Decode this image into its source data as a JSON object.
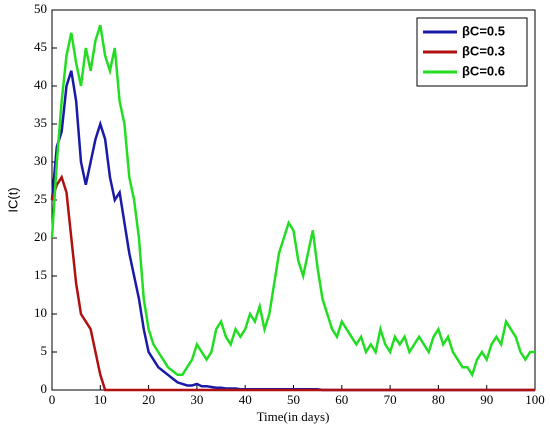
{
  "chart_data": {
    "type": "line",
    "xlabel": "Time(in days)",
    "ylabel": "IC(t)",
    "xlim": [
      0,
      100
    ],
    "xticks": [
      0,
      10,
      20,
      30,
      40,
      50,
      60,
      70,
      80,
      90,
      100
    ],
    "ylim": [
      0,
      50
    ],
    "yticks": [
      0,
      5,
      10,
      15,
      20,
      25,
      30,
      35,
      40,
      45,
      50
    ],
    "legend": "upper right",
    "x": [
      0,
      1,
      2,
      3,
      4,
      5,
      6,
      7,
      8,
      9,
      10,
      11,
      12,
      13,
      14,
      15,
      16,
      17,
      18,
      19,
      20,
      21,
      22,
      23,
      24,
      25,
      26,
      27,
      28,
      29,
      30,
      31,
      32,
      33,
      34,
      35,
      36,
      37,
      38,
      39,
      40,
      41,
      42,
      43,
      44,
      45,
      46,
      47,
      48,
      49,
      50,
      51,
      52,
      53,
      54,
      55,
      56,
      57,
      58,
      59,
      60,
      61,
      62,
      63,
      64,
      65,
      66,
      67,
      68,
      69,
      70,
      71,
      72,
      73,
      74,
      75,
      76,
      77,
      78,
      79,
      80,
      81,
      82,
      83,
      84,
      85,
      86,
      87,
      88,
      89,
      90,
      91,
      92,
      93,
      94,
      95,
      96,
      97,
      98,
      99,
      100
    ],
    "series": [
      {
        "name": "βC=0.5",
        "color": "#1a1aa8",
        "values": [
          25,
          32,
          34,
          40,
          42,
          38,
          30,
          27,
          30,
          33,
          35,
          33,
          28,
          25,
          26,
          22,
          18,
          15,
          12,
          8,
          5,
          4,
          3,
          2.5,
          2,
          1.5,
          1,
          0.8,
          0.6,
          0.6,
          0.8,
          0.5,
          0.5,
          0.4,
          0.3,
          0.3,
          0.2,
          0.2,
          0.2,
          0.1,
          0.1,
          0.1,
          0.1,
          0.1,
          0.1,
          0.1,
          0.1,
          0.1,
          0.1,
          0.1,
          0.1,
          0.1,
          0.1,
          0.1,
          0.1,
          0.1,
          0,
          0,
          0,
          0,
          0,
          0,
          0,
          0,
          0,
          0,
          0,
          0,
          0,
          0,
          0,
          0,
          0,
          0,
          0,
          0,
          0,
          0,
          0,
          0,
          0,
          0,
          0,
          0,
          0,
          0,
          0,
          0,
          0,
          0,
          0,
          0,
          0,
          0,
          0,
          0,
          0,
          0,
          0,
          0,
          0
        ]
      },
      {
        "name": "βC=0.3",
        "color": "#b01010",
        "values": [
          25,
          27,
          28,
          26,
          20,
          14,
          10,
          9,
          8,
          5,
          2,
          0,
          0,
          0,
          0,
          0,
          0,
          0,
          0,
          0,
          0,
          0,
          0,
          0,
          0,
          0,
          0,
          0,
          0,
          0,
          0,
          0,
          0,
          0,
          0,
          0,
          0,
          0,
          0,
          0,
          0,
          0,
          0,
          0,
          0,
          0,
          0,
          0,
          0,
          0,
          0,
          0,
          0,
          0,
          0,
          0,
          0,
          0,
          0,
          0,
          0,
          0,
          0,
          0,
          0,
          0,
          0,
          0,
          0,
          0,
          0,
          0,
          0,
          0,
          0,
          0,
          0,
          0,
          0,
          0,
          0,
          0,
          0,
          0,
          0,
          0,
          0,
          0,
          0,
          0,
          0,
          0,
          0,
          0,
          0,
          0,
          0,
          0,
          0,
          0,
          0
        ]
      },
      {
        "name": "βC=0.6",
        "color": "#22dd22",
        "values": [
          20,
          30,
          38,
          44,
          47,
          43,
          40,
          45,
          42,
          46,
          48,
          44,
          42,
          45,
          38,
          35,
          28,
          25,
          20,
          12,
          8,
          6,
          5,
          4,
          3,
          2.5,
          2,
          2,
          3,
          4,
          6,
          5,
          4,
          5,
          8,
          9,
          7,
          6,
          8,
          7,
          8,
          10,
          9,
          11,
          8,
          10,
          14,
          18,
          20,
          22,
          21,
          17,
          15,
          18,
          21,
          16,
          12,
          10,
          8,
          7,
          9,
          8,
          7,
          6,
          7,
          5,
          6,
          5,
          8,
          6,
          5,
          7,
          6,
          7,
          5,
          6,
          7,
          6,
          5,
          7,
          8,
          6,
          7,
          5,
          4,
          3,
          3,
          2,
          4,
          5,
          4,
          6,
          7,
          6,
          9,
          8,
          7,
          5,
          4,
          5,
          5
        ]
      }
    ]
  }
}
